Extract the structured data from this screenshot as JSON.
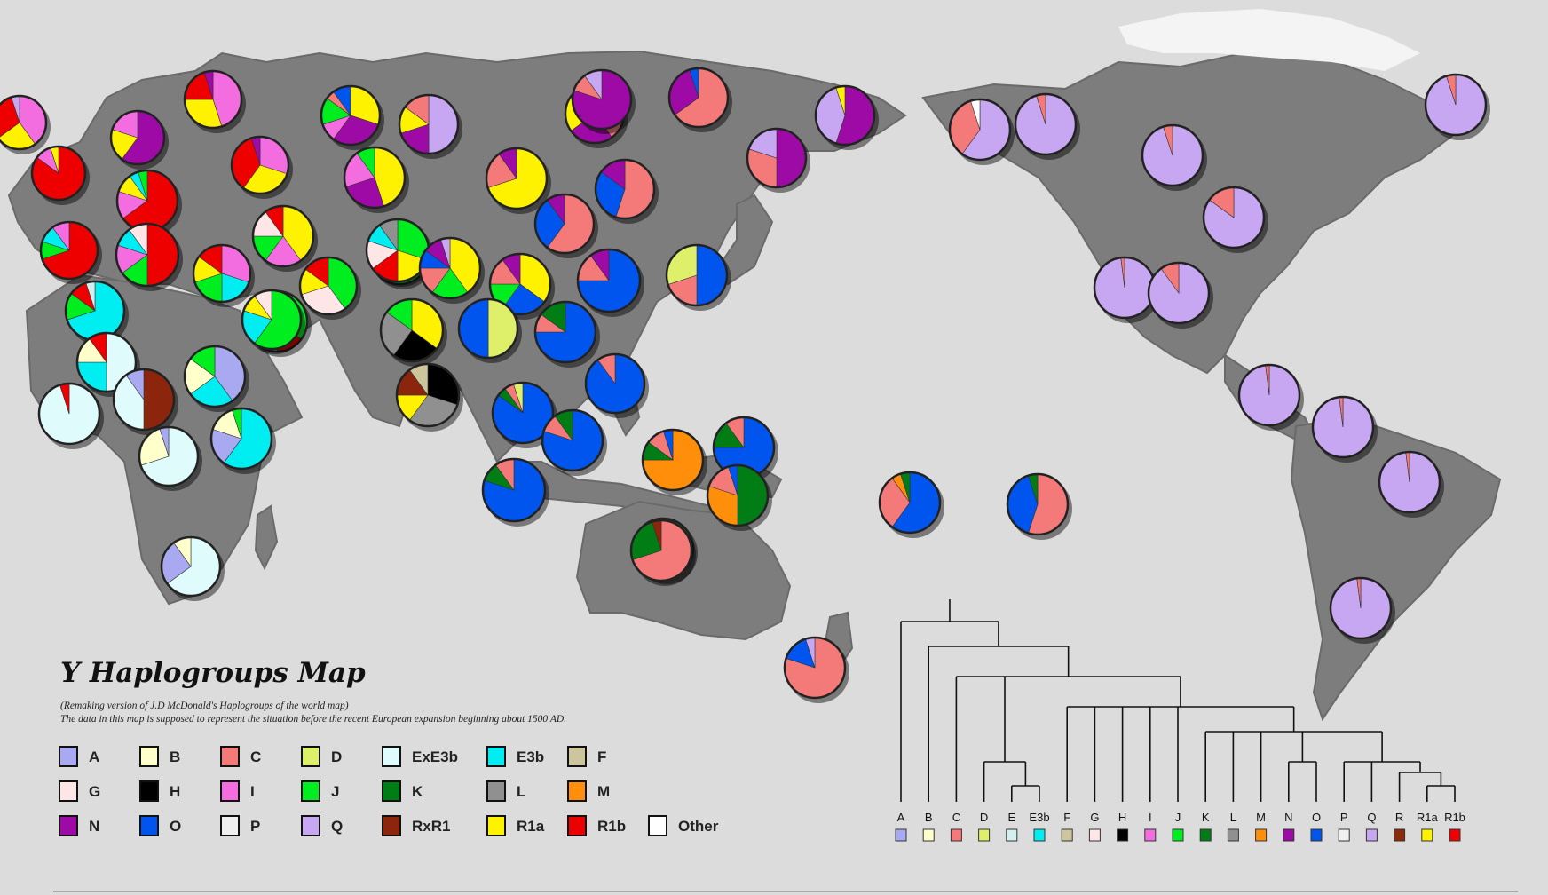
{
  "title": "Y Haplogroups Map",
  "subtitle_1": "(Remaking version of J.D McDonald's Haplogroups of the world map)",
  "subtitle_2": "The data in this map is supposed to represent the situation before the recent European expansion beginning about 1500 AD.",
  "colors": {
    "A": "#a9a9f2",
    "B": "#ffffcc",
    "C": "#f47a7a",
    "D": "#deef6a",
    "E": "#d3efef",
    "E3b": "#00eef2",
    "F": "#cdc59b",
    "G": "#ffe6e6",
    "H": "#000000",
    "I": "#f36de0",
    "J": "#00ee1f",
    "K": "#007d15",
    "L": "#909090",
    "M": "#ff8f0a",
    "N": "#9d0aa6",
    "O": "#0055ee",
    "P": "#f0f0f0",
    "Q": "#c7a7f2",
    "R": "#8a2a08",
    "R1a": "#fff200",
    "R1b": "#ee0000",
    "ExE3b": "#e0fbfb",
    "RxR1": "#8b250b",
    "Other": "#ffffff"
  },
  "legend": [
    {
      "key": "A",
      "label": "A"
    },
    {
      "key": "B",
      "label": "B"
    },
    {
      "key": "C",
      "label": "C"
    },
    {
      "key": "D",
      "label": "D"
    },
    {
      "key": "ExE3b",
      "label": "ExE3b"
    },
    {
      "key": "E3b",
      "label": "E3b"
    },
    {
      "key": "F",
      "label": "F"
    },
    {
      "key": "G",
      "label": "G"
    },
    {
      "key": "H",
      "label": "H"
    },
    {
      "key": "I",
      "label": "I"
    },
    {
      "key": "J",
      "label": "J"
    },
    {
      "key": "K",
      "label": "K"
    },
    {
      "key": "L",
      "label": "L"
    },
    {
      "key": "M",
      "label": "M"
    },
    {
      "key": "N",
      "label": "N"
    },
    {
      "key": "O",
      "label": "O"
    },
    {
      "key": "P",
      "label": "P"
    },
    {
      "key": "Q",
      "label": "Q"
    },
    {
      "key": "RxR1",
      "label": "RxR1"
    },
    {
      "key": "R1a",
      "label": "R1a"
    },
    {
      "key": "R1b",
      "label": "R1b"
    },
    {
      "key": "Other",
      "label": "Other"
    }
  ],
  "tree_leaves": [
    {
      "label": "A",
      "color": "A"
    },
    {
      "label": "B",
      "color": "B"
    },
    {
      "label": "C",
      "color": "C"
    },
    {
      "label": "D",
      "color": "D"
    },
    {
      "label": "E",
      "color": "E"
    },
    {
      "label": "E3b",
      "color": "E3b"
    },
    {
      "label": "F",
      "color": "F"
    },
    {
      "label": "G",
      "color": "G"
    },
    {
      "label": "H",
      "color": "H"
    },
    {
      "label": "I",
      "color": "I"
    },
    {
      "label": "J",
      "color": "J"
    },
    {
      "label": "K",
      "color": "K"
    },
    {
      "label": "L",
      "color": "L"
    },
    {
      "label": "M",
      "color": "M"
    },
    {
      "label": "N",
      "color": "N"
    },
    {
      "label": "O",
      "color": "O"
    },
    {
      "label": "P",
      "color": "P"
    },
    {
      "label": "Q",
      "color": "Q"
    },
    {
      "label": "R",
      "color": "R"
    },
    {
      "label": "R1a",
      "color": "R1a"
    },
    {
      "label": "R1b",
      "color": "R1b"
    }
  ],
  "pies": [
    {
      "id": "iceland-area",
      "slices": [
        [
          "I",
          40
        ],
        [
          "R1a",
          25
        ],
        [
          "R1b",
          30
        ],
        [
          "Q",
          5
        ]
      ]
    },
    {
      "id": "scandinavia",
      "slices": [
        [
          "I",
          45
        ],
        [
          "R1a",
          30
        ],
        [
          "R1b",
          20
        ],
        [
          "N",
          5
        ]
      ]
    },
    {
      "id": "finland",
      "slices": [
        [
          "N",
          60
        ],
        [
          "R1a",
          20
        ],
        [
          "I",
          20
        ]
      ]
    },
    {
      "id": "ireland",
      "slices": [
        [
          "R1b",
          85
        ],
        [
          "I",
          10
        ],
        [
          "R1a",
          5
        ]
      ]
    },
    {
      "id": "britain",
      "slices": [
        [
          "R1b",
          65
        ],
        [
          "I",
          15
        ],
        [
          "R1a",
          10
        ],
        [
          "E3b",
          5
        ],
        [
          "J",
          5
        ]
      ]
    },
    {
      "id": "north-sea",
      "slices": [
        [
          "I",
          30
        ],
        [
          "R1a",
          30
        ],
        [
          "R1b",
          35
        ],
        [
          "N",
          5
        ]
      ]
    },
    {
      "id": "baltic",
      "slices": [
        [
          "R1a",
          45
        ],
        [
          "N",
          25
        ],
        [
          "I",
          20
        ],
        [
          "J",
          10
        ]
      ]
    },
    {
      "id": "volga",
      "slices": [
        [
          "R1a",
          30
        ],
        [
          "N",
          30
        ],
        [
          "I",
          10
        ],
        [
          "J",
          15
        ],
        [
          "C",
          5
        ],
        [
          "O",
          10
        ]
      ]
    },
    {
      "id": "ural",
      "slices": [
        [
          "Q",
          50
        ],
        [
          "N",
          20
        ],
        [
          "R1a",
          15
        ],
        [
          "C",
          15
        ]
      ]
    },
    {
      "id": "iberia",
      "slices": [
        [
          "R1b",
          70
        ],
        [
          "J",
          10
        ],
        [
          "E3b",
          10
        ],
        [
          "I",
          10
        ]
      ]
    },
    {
      "id": "france",
      "slices": [
        [
          "R1b",
          50
        ],
        [
          "J",
          15
        ],
        [
          "I",
          15
        ],
        [
          "E3b",
          10
        ],
        [
          "G",
          10
        ]
      ]
    },
    {
      "id": "balkans",
      "slices": [
        [
          "I",
          30
        ],
        [
          "E3b",
          20
        ],
        [
          "J",
          20
        ],
        [
          "R1a",
          15
        ],
        [
          "R1b",
          15
        ]
      ]
    },
    {
      "id": "ukraine",
      "slices": [
        [
          "R1a",
          40
        ],
        [
          "I",
          20
        ],
        [
          "J",
          15
        ],
        [
          "G",
          15
        ],
        [
          "R1b",
          10
        ]
      ]
    },
    {
      "id": "caucasus",
      "slices": [
        [
          "J",
          40
        ],
        [
          "G",
          30
        ],
        [
          "R1a",
          15
        ],
        [
          "R1b",
          15
        ]
      ]
    },
    {
      "id": "anatolia",
      "slices": [
        [
          "J",
          35
        ],
        [
          "R1b",
          15
        ],
        [
          "E3b",
          15
        ],
        [
          "G",
          15
        ],
        [
          "I",
          10
        ],
        [
          "R1a",
          10
        ]
      ]
    },
    {
      "id": "levant",
      "slices": [
        [
          "J",
          55
        ],
        [
          "E3b",
          20
        ],
        [
          "G",
          10
        ],
        [
          "R1b",
          15
        ]
      ]
    },
    {
      "id": "maghreb",
      "slices": [
        [
          "E3b",
          70
        ],
        [
          "J",
          15
        ],
        [
          "R1b",
          10
        ],
        [
          "E",
          5
        ]
      ]
    },
    {
      "id": "sahara",
      "slices": [
        [
          "ExE3b",
          50
        ],
        [
          "E3b",
          25
        ],
        [
          "B",
          15
        ],
        [
          "R1b",
          10
        ]
      ]
    },
    {
      "id": "west-africa",
      "slices": [
        [
          "ExE3b",
          95
        ],
        [
          "R1b",
          5
        ]
      ]
    },
    {
      "id": "sahel",
      "slices": [
        [
          "RxR1",
          50
        ],
        [
          "ExE3b",
          40
        ],
        [
          "A",
          10
        ]
      ]
    },
    {
      "id": "egypt-sudan",
      "slices": [
        [
          "A",
          40
        ],
        [
          "E3b",
          25
        ],
        [
          "B",
          20
        ],
        [
          "J",
          15
        ]
      ]
    },
    {
      "id": "central-africa",
      "slices": [
        [
          "ExE3b",
          70
        ],
        [
          "B",
          25
        ],
        [
          "A",
          5
        ]
      ]
    },
    {
      "id": "horn-africa",
      "slices": [
        [
          "E3b",
          60
        ],
        [
          "A",
          20
        ],
        [
          "B",
          15
        ],
        [
          "J",
          5
        ]
      ]
    },
    {
      "id": "south-africa",
      "slices": [
        [
          "ExE3b",
          65
        ],
        [
          "A",
          25
        ],
        [
          "B",
          10
        ]
      ]
    },
    {
      "id": "arabia",
      "slices": [
        [
          "J",
          60
        ],
        [
          "E3b",
          20
        ],
        [
          "R1a",
          10
        ],
        [
          "G",
          10
        ]
      ]
    },
    {
      "id": "iran",
      "slices": [
        [
          "J",
          30
        ],
        [
          "R1a",
          20
        ],
        [
          "R1b",
          15
        ],
        [
          "G",
          15
        ],
        [
          "E3b",
          10
        ],
        [
          "L",
          10
        ]
      ]
    },
    {
      "id": "central-asia",
      "slices": [
        [
          "R1a",
          40
        ],
        [
          "J",
          20
        ],
        [
          "C",
          15
        ],
        [
          "O",
          10
        ],
        [
          "N",
          10
        ],
        [
          "Q",
          5
        ]
      ]
    },
    {
      "id": "west-siberia",
      "slices": [
        [
          "C",
          40
        ],
        [
          "N",
          25
        ],
        [
          "R1a",
          20
        ],
        [
          "O",
          15
        ]
      ]
    },
    {
      "id": "kazakh",
      "slices": [
        [
          "R1a",
          70
        ],
        [
          "C",
          20
        ],
        [
          "N",
          10
        ]
      ]
    },
    {
      "id": "tarim",
      "slices": [
        [
          "R1a",
          35
        ],
        [
          "O",
          25
        ],
        [
          "J",
          15
        ],
        [
          "C",
          15
        ],
        [
          "N",
          10
        ]
      ]
    },
    {
      "id": "indus",
      "slices": [
        [
          "R1a",
          35
        ],
        [
          "H",
          25
        ],
        [
          "L",
          25
        ],
        [
          "J",
          15
        ]
      ]
    },
    {
      "id": "india-south",
      "slices": [
        [
          "H",
          30
        ],
        [
          "L",
          30
        ],
        [
          "R1a",
          15
        ],
        [
          "RxR1",
          15
        ],
        [
          "F",
          10
        ]
      ]
    },
    {
      "id": "tibet",
      "slices": [
        [
          "D",
          50
        ],
        [
          "O",
          50
        ]
      ]
    },
    {
      "id": "mongolia",
      "slices": [
        [
          "C",
          55
        ],
        [
          "O",
          30
        ],
        [
          "N",
          15
        ]
      ]
    },
    {
      "id": "manchuria",
      "slices": [
        [
          "C",
          60
        ],
        [
          "O",
          30
        ],
        [
          "N",
          10
        ]
      ]
    },
    {
      "id": "yakutia",
      "slices": [
        [
          "C",
          65
        ],
        [
          "N",
          30
        ],
        [
          "O",
          5
        ]
      ]
    },
    {
      "id": "chukotka-west",
      "slices": [
        [
          "N",
          80
        ],
        [
          "C",
          10
        ],
        [
          "Q",
          10
        ]
      ]
    },
    {
      "id": "chukotka",
      "slices": [
        [
          "N",
          55
        ],
        [
          "Q",
          40
        ],
        [
          "R1a",
          5
        ]
      ]
    },
    {
      "id": "north-china",
      "slices": [
        [
          "O",
          75
        ],
        [
          "C",
          15
        ],
        [
          "N",
          10
        ]
      ]
    },
    {
      "id": "korea",
      "slices": [
        [
          "O",
          50
        ],
        [
          "C",
          20
        ],
        [
          "D",
          30
        ]
      ]
    },
    {
      "id": "kamchatka",
      "slices": [
        [
          "N",
          50
        ],
        [
          "C",
          30
        ],
        [
          "Q",
          20
        ]
      ]
    },
    {
      "id": "south-china",
      "slices": [
        [
          "O",
          75
        ],
        [
          "C",
          10
        ],
        [
          "K",
          15
        ]
      ]
    },
    {
      "id": "taiwan",
      "slices": [
        [
          "O",
          90
        ],
        [
          "C",
          10
        ]
      ]
    },
    {
      "id": "indochina",
      "slices": [
        [
          "O",
          85
        ],
        [
          "K",
          5
        ],
        [
          "C",
          5
        ],
        [
          "D",
          5
        ]
      ]
    },
    {
      "id": "malaysia",
      "slices": [
        [
          "O",
          80
        ],
        [
          "C",
          10
        ],
        [
          "K",
          10
        ]
      ]
    },
    {
      "id": "borneo",
      "slices": [
        [
          "O",
          80
        ],
        [
          "K",
          10
        ],
        [
          "C",
          10
        ]
      ]
    },
    {
      "id": "sulawesi",
      "slices": [
        [
          "O",
          75
        ],
        [
          "K",
          15
        ],
        [
          "C",
          10
        ]
      ]
    },
    {
      "id": "new-guinea-w",
      "slices": [
        [
          "M",
          75
        ],
        [
          "K",
          10
        ],
        [
          "C",
          10
        ],
        [
          "O",
          5
        ]
      ]
    },
    {
      "id": "new-guinea-e",
      "slices": [
        [
          "K",
          50
        ],
        [
          "M",
          30
        ],
        [
          "C",
          15
        ],
        [
          "O",
          5
        ]
      ]
    },
    {
      "id": "melanesia",
      "slices": [
        [
          "K",
          60
        ],
        [
          "M",
          35
        ],
        [
          "C",
          5
        ]
      ]
    },
    {
      "id": "australia",
      "slices": [
        [
          "C",
          70
        ],
        [
          "K",
          25
        ],
        [
          "RxR1",
          5
        ]
      ]
    },
    {
      "id": "new-zealand",
      "slices": [
        [
          "C",
          80
        ],
        [
          "O",
          15
        ],
        [
          "Q",
          5
        ]
      ]
    },
    {
      "id": "micronesia",
      "slices": [
        [
          "O",
          60
        ],
        [
          "C",
          30
        ],
        [
          "M",
          5
        ],
        [
          "K",
          5
        ]
      ]
    },
    {
      "id": "polynesia",
      "slices": [
        [
          "C",
          55
        ],
        [
          "O",
          40
        ],
        [
          "K",
          5
        ]
      ]
    },
    {
      "id": "alaska",
      "slices": [
        [
          "Q",
          60
        ],
        [
          "C",
          35
        ],
        [
          "Other",
          5
        ]
      ]
    },
    {
      "id": "yukon",
      "slices": [
        [
          "Q",
          95
        ],
        [
          "C",
          5
        ]
      ]
    },
    {
      "id": "canada-north",
      "slices": [
        [
          "Q",
          95
        ],
        [
          "C",
          5
        ]
      ]
    },
    {
      "id": "greenland",
      "slices": [
        [
          "Q",
          95
        ],
        [
          "C",
          5
        ]
      ]
    },
    {
      "id": "canada-east",
      "slices": [
        [
          "Q",
          85
        ],
        [
          "C",
          15
        ]
      ]
    },
    {
      "id": "us-west",
      "slices": [
        [
          "Q",
          98
        ],
        [
          "C",
          2
        ]
      ]
    },
    {
      "id": "us-central",
      "slices": [
        [
          "Q",
          90
        ],
        [
          "C",
          10
        ]
      ]
    },
    {
      "id": "mexico",
      "slices": [
        [
          "Q",
          98
        ],
        [
          "C",
          2
        ]
      ]
    },
    {
      "id": "colombia",
      "slices": [
        [
          "Q",
          98
        ],
        [
          "C",
          2
        ]
      ]
    },
    {
      "id": "amazon",
      "slices": [
        [
          "Q",
          98
        ],
        [
          "C",
          2
        ]
      ]
    },
    {
      "id": "argentina",
      "slices": [
        [
          "Q",
          98
        ],
        [
          "C",
          2
        ]
      ]
    }
  ]
}
